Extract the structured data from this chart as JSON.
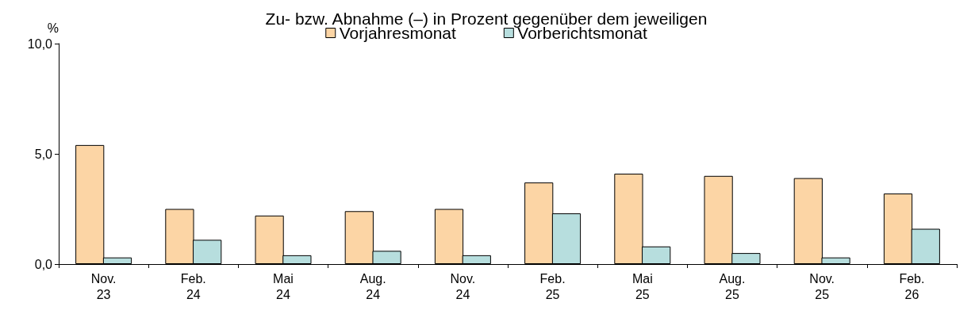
{
  "chart_data": {
    "type": "bar",
    "title": "Zu- bzw. Abnahme (–) in Prozent gegenüber dem jeweiligen",
    "ylabel": "%",
    "categories": [
      "Nov.\n23",
      "Feb.\n24",
      "Mai\n24",
      "Aug.\n24",
      "Nov.\n24",
      "Feb.\n25",
      "Mai\n25",
      "Aug.\n25",
      "Nov.\n25",
      "Feb.\n26"
    ],
    "series": [
      {
        "name": "Vorjahresmonat",
        "color": "#fcd5a5",
        "values": [
          5.4,
          2.5,
          2.2,
          2.4,
          2.5,
          3.7,
          4.1,
          4.0,
          3.9,
          3.2
        ]
      },
      {
        "name": "Vorberichtsmonat",
        "color": "#b7dede",
        "values": [
          0.3,
          1.1,
          0.4,
          0.6,
          0.4,
          2.3,
          0.8,
          0.5,
          0.3,
          1.6
        ]
      }
    ],
    "ylim": [
      0,
      10
    ],
    "yticks": [
      {
        "value": 0,
        "label": "0,0"
      },
      {
        "value": 5,
        "label": "5,0"
      },
      {
        "value": 10,
        "label": "10,0"
      }
    ],
    "grid": false,
    "legend": "top"
  }
}
